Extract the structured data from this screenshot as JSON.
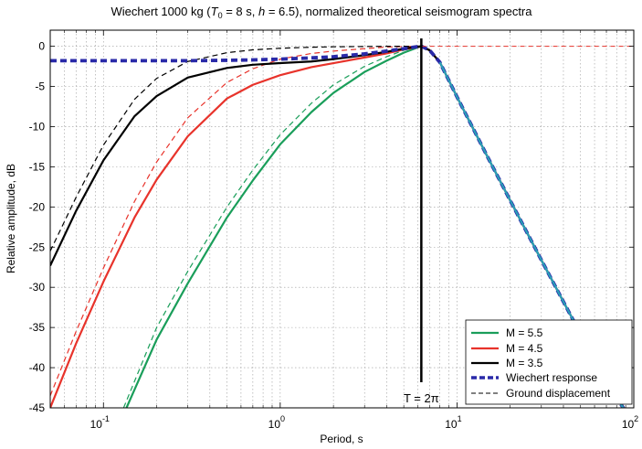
{
  "chart_data": {
    "type": "line",
    "title": {
      "pre": "Wiechert 1000 kg (",
      "t": "T",
      "t_sub": "0",
      "mid": " = 8 s, ",
      "h": "h",
      "post": " = 6.5), normalized theoretical seismogram spectra"
    },
    "xlabel": "Period, s",
    "ylabel": "Relative amplitude, dB",
    "x_scale": "log",
    "xlim": [
      0.05,
      100
    ],
    "ylim": [
      -45,
      2
    ],
    "grid": true,
    "x_ticks": [
      {
        "value": 0.1,
        "base": "10",
        "exp": "-1"
      },
      {
        "value": 1,
        "base": "10",
        "exp": "0"
      },
      {
        "value": 10,
        "base": "10",
        "exp": "1"
      },
      {
        "value": 100,
        "base": "10",
        "exp": "2"
      }
    ],
    "y_ticks": [
      {
        "value": 0,
        "label": "0"
      },
      {
        "value": -5,
        "label": "-5"
      },
      {
        "value": -10,
        "label": "-10"
      },
      {
        "value": -15,
        "label": "-15"
      },
      {
        "value": -20,
        "label": "-20"
      },
      {
        "value": -25,
        "label": "-25"
      },
      {
        "value": -30,
        "label": "-30"
      },
      {
        "value": -35,
        "label": "-35"
      },
      {
        "value": -40,
        "label": "-40"
      },
      {
        "value": -45,
        "label": "-45"
      }
    ],
    "legend_position": "bottom-right",
    "legend": [
      {
        "label": "M = 5.5",
        "color": "#1a9e5a",
        "style": "solid"
      },
      {
        "label": "M = 4.5",
        "color": "#e8332b",
        "style": "solid"
      },
      {
        "label": "M = 3.5",
        "color": "#000000",
        "style": "solid"
      },
      {
        "label": "Wiechert response",
        "color": "#2a2aa8",
        "style": "thick-dashed"
      },
      {
        "label": "Ground displacement",
        "color": "#000000",
        "style": "dashed"
      }
    ],
    "annotation": {
      "label": "T = 2π",
      "x": 6.283
    },
    "series": [
      {
        "series_ref": 0,
        "color": "#1a9e5a",
        "style": "solid",
        "x": [
          0.135,
          0.2,
          0.3,
          0.5,
          0.7,
          1,
          1.5,
          2,
          3,
          4,
          5,
          6,
          6.3,
          7,
          8,
          10,
          15,
          20,
          30,
          40,
          50,
          70,
          100
        ],
        "y": [
          -45,
          -36.5,
          -29.5,
          -21.3,
          -16.7,
          -12.2,
          -8.2,
          -5.8,
          -3.2,
          -1.8,
          -0.8,
          -0.15,
          0,
          -0.5,
          -2,
          -6.3,
          -13.9,
          -19.2,
          -26.6,
          -31.8,
          -35.8,
          -41.8,
          -47
        ]
      },
      {
        "series_ref": 0,
        "color": "#1a9e5a",
        "style": "dashed",
        "x": [
          0.13,
          0.2,
          0.3,
          0.5,
          0.7,
          1,
          1.5,
          2,
          3,
          4,
          5,
          6,
          6.3,
          7,
          8,
          10,
          15,
          20,
          30,
          40,
          50,
          70,
          100
        ],
        "y": [
          -45,
          -35,
          -28,
          -20,
          -15.4,
          -11,
          -7.1,
          -4.8,
          -2.5,
          -1.3,
          -0.5,
          -0.1,
          0,
          -0.5,
          -2,
          -6.3,
          -13.9,
          -19.2,
          -26.6,
          -31.8,
          -35.8,
          -41.8,
          -47
        ]
      },
      {
        "series_ref": 1,
        "color": "#e8332b",
        "style": "solid",
        "x": [
          0.05,
          0.07,
          0.1,
          0.15,
          0.2,
          0.3,
          0.5,
          0.7,
          1,
          1.5,
          2,
          3,
          4,
          5,
          6,
          6.3,
          7,
          8,
          10,
          15,
          20,
          30,
          40,
          50,
          70,
          100
        ],
        "y": [
          -45,
          -37,
          -29.3,
          -21.3,
          -16.6,
          -11.2,
          -6.5,
          -4.8,
          -3.6,
          -2.6,
          -2.1,
          -1.4,
          -0.9,
          -0.4,
          -0.1,
          0,
          -0.5,
          -2,
          -6.3,
          -13.9,
          -19.2,
          -26.6,
          -31.8,
          -35.8,
          -41.8,
          -47
        ]
      },
      {
        "series_ref": 1,
        "color": "#e8332b",
        "style": "dashed",
        "x": [
          0.05,
          0.07,
          0.1,
          0.15,
          0.2,
          0.3,
          0.5,
          0.7,
          1,
          1.5,
          2,
          3,
          4,
          5,
          6,
          6.3,
          7,
          8,
          10,
          15,
          20,
          30,
          40,
          50,
          70,
          100
        ],
        "y": [
          -43.5,
          -35.5,
          -27.6,
          -19.3,
          -14.4,
          -8.9,
          -4.5,
          -2.8,
          -1.6,
          -0.9,
          -0.6,
          -0.3,
          -0.1,
          -0.05,
          0,
          0,
          -0.5,
          -2,
          -6.3,
          -13.9,
          -19.2,
          -26.6,
          -31.8,
          -35.8,
          -41.8,
          -47
        ]
      },
      {
        "series_ref": 2,
        "color": "#000000",
        "style": "solid",
        "x": [
          0.05,
          0.07,
          0.1,
          0.15,
          0.2,
          0.3,
          0.5,
          0.7,
          1,
          1.5,
          2,
          3,
          4,
          5,
          6,
          6.3,
          7,
          8,
          10,
          15,
          20,
          30,
          40,
          50,
          70,
          100
        ],
        "y": [
          -27.3,
          -20.5,
          -14.2,
          -8.7,
          -6.2,
          -3.9,
          -2.7,
          -2.3,
          -2.1,
          -1.9,
          -1.6,
          -1.1,
          -0.7,
          -0.3,
          -0.05,
          0,
          -0.5,
          -2,
          -6.3,
          -13.9,
          -19.2,
          -26.6,
          -31.8,
          -35.8,
          -41.8,
          -47
        ]
      },
      {
        "series_ref": 2,
        "color": "#000000",
        "style": "dashed",
        "x": [
          0.05,
          0.07,
          0.1,
          0.15,
          0.2,
          0.3,
          0.5,
          0.7,
          1,
          1.5,
          2,
          3,
          4,
          5,
          6,
          6.3,
          7,
          8,
          10,
          15,
          20,
          30,
          40,
          50,
          70,
          100
        ],
        "y": [
          -25.5,
          -18.8,
          -12.3,
          -6.6,
          -4,
          -1.9,
          -0.8,
          -0.45,
          -0.25,
          -0.12,
          -0.07,
          -0.03,
          -0.01,
          0,
          0,
          0,
          -0.5,
          -2,
          -6.3,
          -13.9,
          -19.2,
          -26.6,
          -31.8,
          -35.8,
          -41.8,
          -47
        ]
      },
      {
        "series_ref": 3,
        "color": "#2a2aa8",
        "style": "thick-dashed",
        "x": [
          0.05,
          0.1,
          0.2,
          0.3,
          0.5,
          0.7,
          1,
          1.5,
          2,
          3,
          4,
          5,
          6,
          6.3,
          7,
          8,
          10,
          15,
          20,
          30,
          40,
          50,
          70,
          100
        ],
        "y": [
          -1.8,
          -1.8,
          -1.8,
          -1.8,
          -1.75,
          -1.7,
          -1.6,
          -1.45,
          -1.3,
          -0.95,
          -0.6,
          -0.3,
          -0.05,
          0,
          -0.5,
          -2,
          -6.3,
          -13.9,
          -19.2,
          -26.6,
          -31.8,
          -35.8,
          -41.8,
          -47
        ]
      },
      {
        "series_ref": 4,
        "color": "#e8332b",
        "style": "thin-dashed",
        "x": [
          6.3,
          10,
          20,
          50,
          100
        ],
        "y": [
          0,
          0,
          0,
          0,
          0
        ]
      },
      {
        "series_ref": 0,
        "color": "#2aa0b8",
        "style": "solid",
        "x": [
          8,
          10,
          15,
          20,
          30,
          40,
          50,
          70,
          100
        ],
        "y": [
          -2,
          -6.3,
          -13.9,
          -19.2,
          -26.6,
          -31.8,
          -35.8,
          -41.8,
          -47
        ]
      }
    ]
  }
}
